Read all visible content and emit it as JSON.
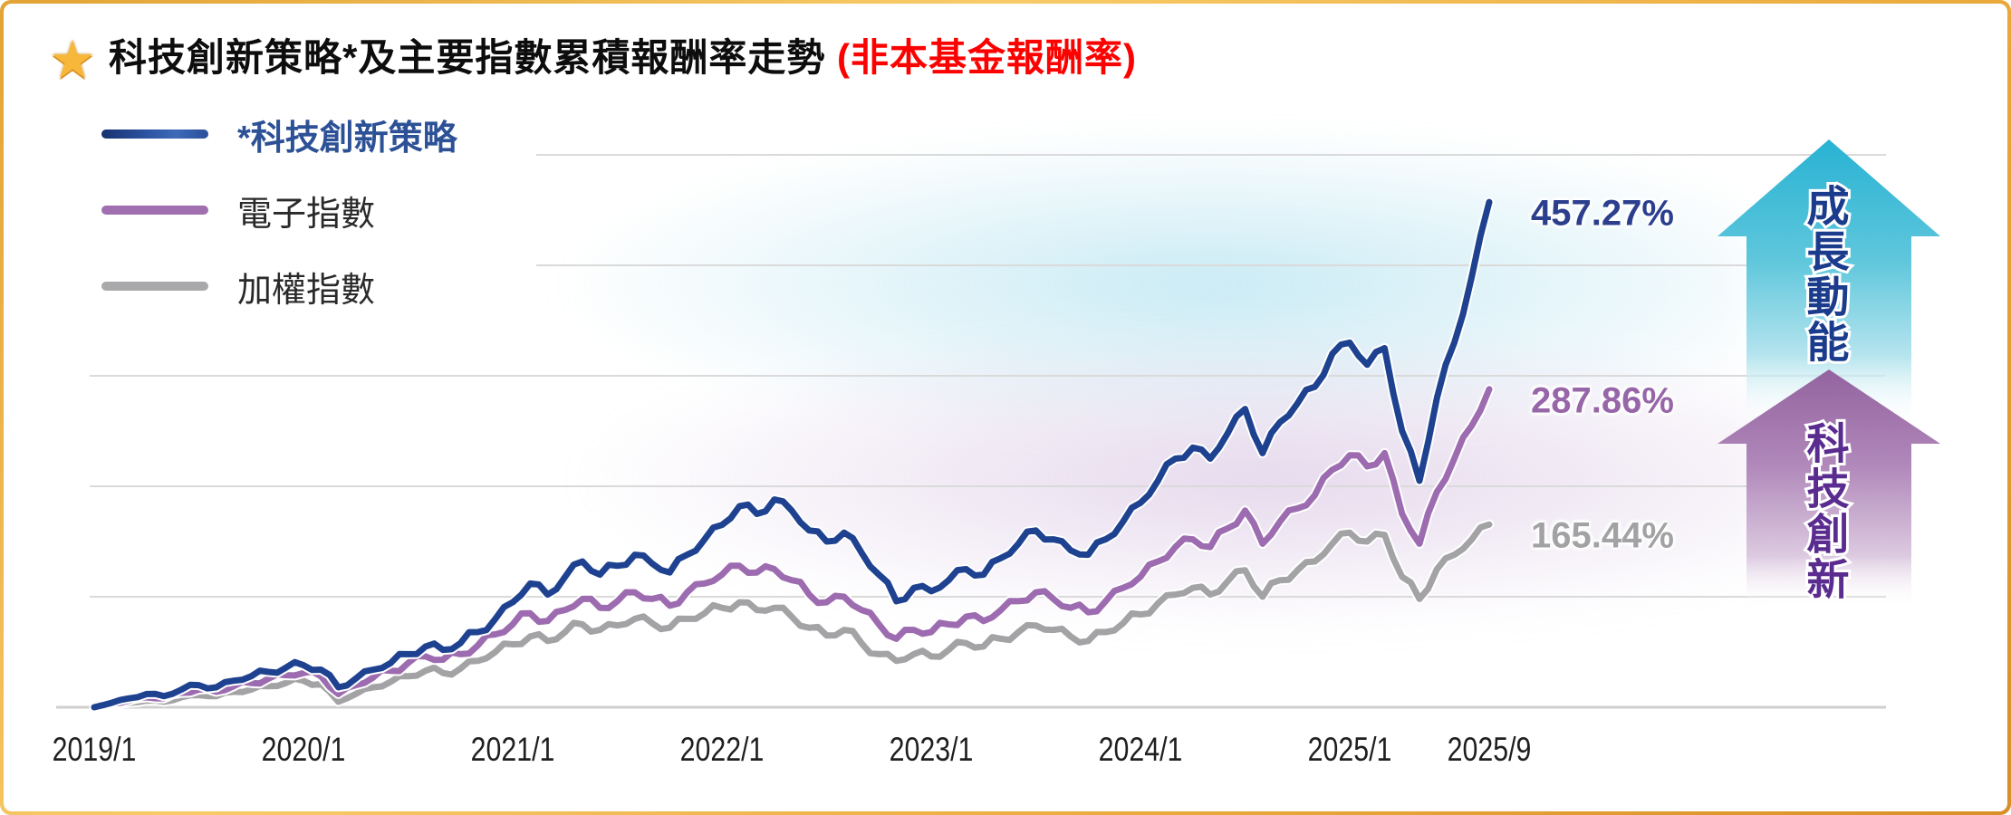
{
  "title": {
    "star_glyph": "★",
    "text": "科技創新策略*及主要指數累積報酬率走勢",
    "highlight": " (非本基金報酬率)"
  },
  "legend": [
    {
      "label": "*科技創新策略",
      "color": "#1e4290"
    },
    {
      "label": "電子指數",
      "color": "#a06fb0"
    },
    {
      "label": "加權指數",
      "color": "#a9a9ab"
    }
  ],
  "chart_data": {
    "type": "line",
    "title": "科技創新策略及主要指數累積報酬率走勢",
    "x_unit": "month",
    "x_start_label": "2019/1",
    "x_tick_labels": [
      "2019/1",
      "2020/1",
      "2021/1",
      "2022/1",
      "2023/1",
      "2024/1",
      "2025/1",
      "2025/9"
    ],
    "x_tick_months": [
      0,
      12,
      24,
      36,
      48,
      60,
      72,
      80
    ],
    "gridlines_pct": [
      0,
      100,
      200,
      300,
      400,
      500
    ],
    "ylim": [
      0,
      500
    ],
    "grid": true,
    "legend_position": "top-left",
    "series": [
      {
        "name": "加權指數",
        "color": "#a3a3a5",
        "end_label": "165.44%",
        "label_color": "#a2a2a4",
        "values": [
          0,
          2,
          4,
          6,
          5,
          9,
          11,
          10,
          14,
          16,
          19,
          22,
          24,
          21,
          5,
          12,
          18,
          23,
          28,
          33,
          31,
          35,
          42,
          50,
          57,
          64,
          60,
          68,
          75,
          70,
          74,
          80,
          76,
          72,
          80,
          85,
          90,
          95,
          88,
          90,
          82,
          72,
          65,
          70,
          58,
          48,
          42,
          48,
          46,
          52,
          58,
          55,
          62,
          68,
          74,
          70,
          64,
          60,
          68,
          76,
          84,
          94,
          102,
          108,
          102,
          114,
          124,
          100,
          115,
          124,
          132,
          148,
          158,
          150,
          156,
          118,
          98,
          125,
          138,
          152,
          165.44
        ]
      },
      {
        "name": "電子指數",
        "color": "#9d6cb0",
        "end_label": "287.86%",
        "label_color": "#9766a8",
        "values": [
          0,
          3,
          6,
          9,
          8,
          13,
          16,
          14,
          19,
          22,
          26,
          29,
          31,
          28,
          12,
          20,
          27,
          33,
          40,
          46,
          43,
          48,
          56,
          66,
          75,
          85,
          78,
          88,
          98,
          90,
          96,
          104,
          98,
          92,
          104,
          112,
          120,
          128,
          122,
          125,
          115,
          102,
          95,
          100,
          88,
          75,
          62,
          70,
          68,
          75,
          82,
          78,
          88,
          96,
          104,
          98,
          90,
          86,
          96,
          108,
          118,
          132,
          145,
          152,
          145,
          162,
          178,
          148,
          168,
          180,
          192,
          215,
          228,
          218,
          230,
          175,
          148,
          195,
          225,
          255,
          287.86
        ]
      },
      {
        "name": "*科技創新策略",
        "color": "#1e4290",
        "end_label": "457.27%",
        "label_color": "#2b3f8e",
        "values": [
          0,
          4,
          8,
          12,
          10,
          16,
          20,
          18,
          24,
          28,
          32,
          36,
          38,
          34,
          18,
          26,
          34,
          40,
          48,
          55,
          52,
          58,
          68,
          80,
          95,
          112,
          102,
          118,
          132,
          120,
          128,
          138,
          130,
          122,
          138,
          152,
          165,
          182,
          175,
          188,
          178,
          160,
          150,
          158,
          140,
          120,
          96,
          108,
          105,
          115,
          125,
          120,
          135,
          148,
          160,
          152,
          142,
          138,
          152,
          168,
          185,
          205,
          225,
          235,
          225,
          248,
          270,
          230,
          258,
          275,
          290,
          320,
          330,
          310,
          325,
          250,
          205,
          280,
          330,
          390,
          457.27
        ]
      }
    ]
  },
  "arrows": [
    {
      "label": "成長動能",
      "text_color": "#1b3b8c",
      "top_color": "#28b2d3"
    },
    {
      "label": "科技創新",
      "text_color": "#5a2c8f",
      "top_color": "#93639f"
    }
  ]
}
